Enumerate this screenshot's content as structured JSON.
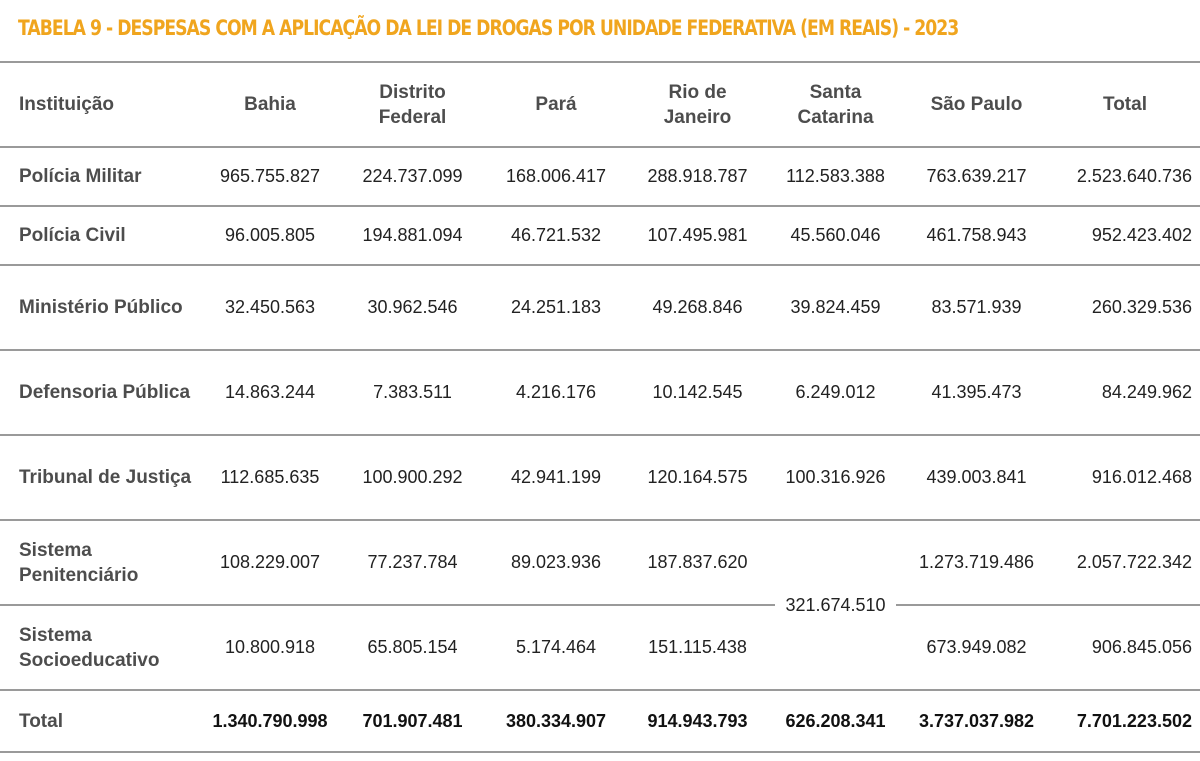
{
  "title": "TABELA 9 - DESPESAS COM A APLICAÇÃO DA LEI DE DROGAS POR UNIDADE FEDERATIVA (EM REAIS) - 2023",
  "colors": {
    "title": "#f0a51e",
    "rule": "#9a9a9a"
  },
  "columns": [
    "Instituição",
    "Bahia",
    "Distrito Federal",
    "Pará",
    "Rio de Janeiro",
    "Santa Catarina",
    "São Paulo",
    "Total"
  ],
  "rows": [
    {
      "label": "Polícia Militar",
      "values": [
        "965.755.827",
        "224.737.099",
        "168.006.417",
        "288.918.787",
        "112.583.388",
        "763.639.217",
        "2.523.640.736"
      ]
    },
    {
      "label": "Polícia Civil",
      "values": [
        "96.005.805",
        "194.881.094",
        "46.721.532",
        "107.495.981",
        "45.560.046",
        "461.758.943",
        "952.423.402"
      ]
    },
    {
      "label": "Ministério Público",
      "values": [
        "32.450.563",
        "30.962.546",
        "24.251.183",
        "49.268.846",
        "39.824.459",
        "83.571.939",
        "260.329.536"
      ]
    },
    {
      "label": "Defensoria Pública",
      "values": [
        "14.863.244",
        "7.383.511",
        "4.216.176",
        "10.142.545",
        "6.249.012",
        "41.395.473",
        "84.249.962"
      ]
    },
    {
      "label": "Tribunal de Justiça",
      "values": [
        "112.685.635",
        "100.900.292",
        "42.941.199",
        "120.164.575",
        "100.316.926",
        "439.003.841",
        "916.012.468"
      ]
    },
    {
      "label": "Sistema Penitenciário",
      "values": [
        "108.229.007",
        "77.237.784",
        "89.023.936",
        "187.837.620",
        "321.674.510",
        "1.273.719.486",
        "2.057.722.342"
      ]
    },
    {
      "label": "Sistema Socioeducativo",
      "values": [
        "10.800.918",
        "65.805.154",
        "5.174.464",
        "151.115.438",
        null,
        "673.949.082",
        "906.845.056"
      ]
    }
  ],
  "merged_note": "Santa Catarina value spans Sistema Penitenciário and Sistema Socioeducativo",
  "total_row": {
    "label": "Total",
    "values": [
      "1.340.790.998",
      "701.907.481",
      "380.334.907",
      "914.943.793",
      "626.208.341",
      "3.737.037.982",
      "7.701.223.502"
    ]
  }
}
